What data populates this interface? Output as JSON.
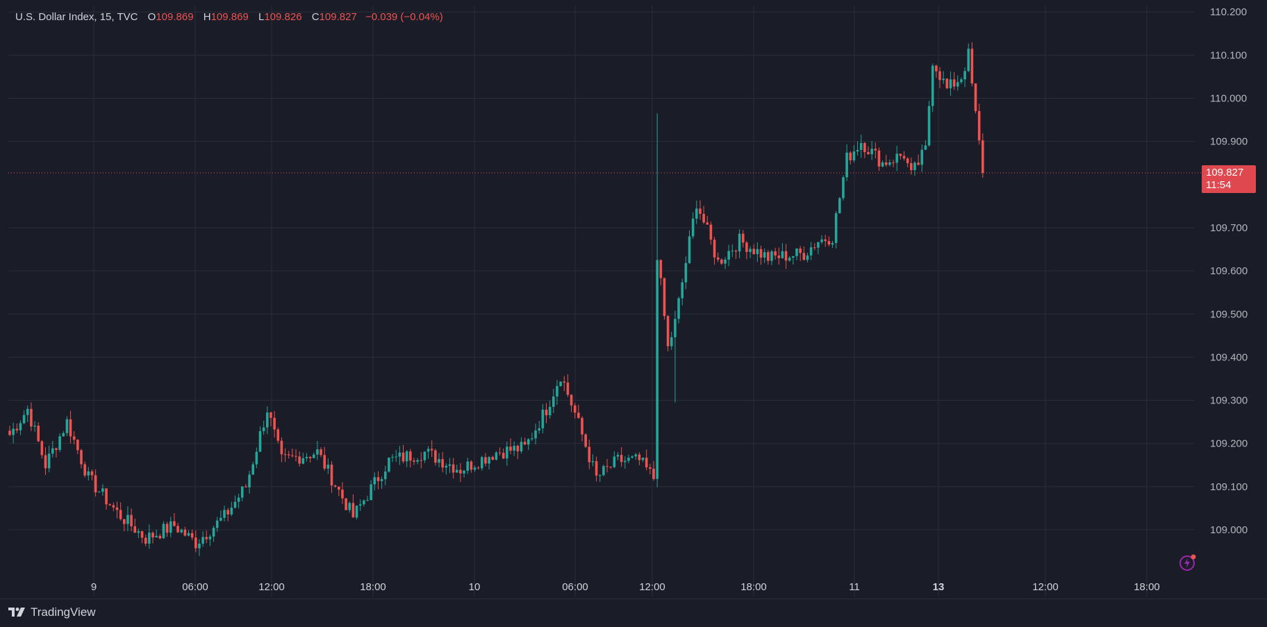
{
  "legend": {
    "symbol": "U.S. Dollar Index, 15, TVC",
    "open_label": "O",
    "open": "109.869",
    "high_label": "H",
    "high": "109.869",
    "low_label": "L",
    "low": "109.826",
    "close_label": "C",
    "close": "109.827",
    "change": "−0.039 (−0.04%)"
  },
  "last_price": {
    "price": "109.827",
    "countdown": "11:54"
  },
  "brand": "TradingView",
  "colors": {
    "up": "#26a69a",
    "down": "#ef5350",
    "background": "#1a1c27",
    "grid": "#2a2e39",
    "price_line": "#ef5350"
  },
  "icons": {
    "brand_logo": "tradingview-logo-icon",
    "flash": "flash-icon"
  },
  "chart_data": {
    "type": "candlestick",
    "title": "U.S. Dollar Index, 15, TVC",
    "y_axis": {
      "position": "right",
      "ticks": [
        "110.200",
        "110.100",
        "110.000",
        "109.900",
        "109.700",
        "109.600",
        "109.500",
        "109.400",
        "109.300",
        "109.200",
        "109.100",
        "109.000"
      ]
    },
    "x_axis": {
      "ticks": [
        {
          "label": "9",
          "bold": false
        },
        {
          "label": "06:00",
          "bold": false
        },
        {
          "label": "12:00",
          "bold": false
        },
        {
          "label": "18:00",
          "bold": false
        },
        {
          "label": "10",
          "bold": false
        },
        {
          "label": "06:00",
          "bold": false
        },
        {
          "label": "12:00",
          "bold": false
        },
        {
          "label": "18:00",
          "bold": false
        },
        {
          "label": "11",
          "bold": false
        },
        {
          "label": "13",
          "bold": true
        },
        {
          "label": "12:00",
          "bold": false
        },
        {
          "label": "18:00",
          "bold": false
        }
      ]
    },
    "grid": true,
    "last_price_line": 109.827,
    "ohlc_keypoints": [
      [
        0,
        109.22
      ],
      [
        5,
        109.28
      ],
      [
        10,
        109.15
      ],
      [
        16,
        109.25
      ],
      [
        22,
        109.12
      ],
      [
        30,
        109.04
      ],
      [
        38,
        108.98
      ],
      [
        46,
        109.01
      ],
      [
        52,
        108.97
      ],
      [
        60,
        109.03
      ],
      [
        66,
        109.1
      ],
      [
        72,
        109.28
      ],
      [
        76,
        109.16
      ],
      [
        86,
        109.18
      ],
      [
        96,
        109.03
      ],
      [
        106,
        109.16
      ],
      [
        116,
        109.18
      ],
      [
        126,
        109.14
      ],
      [
        136,
        109.18
      ],
      [
        144,
        109.19
      ],
      [
        150,
        109.28
      ],
      [
        154,
        109.36
      ],
      [
        158,
        109.27
      ],
      [
        164,
        109.12
      ],
      [
        170,
        109.16
      ],
      [
        176,
        109.16
      ],
      [
        180,
        109.12
      ],
      [
        181,
        109.64
      ],
      [
        184,
        109.42
      ],
      [
        186,
        109.48
      ],
      [
        192,
        109.76
      ],
      [
        198,
        109.62
      ],
      [
        204,
        109.67
      ],
      [
        212,
        109.63
      ],
      [
        222,
        109.64
      ],
      [
        226,
        109.67
      ],
      [
        230,
        109.68
      ],
      [
        234,
        109.86
      ],
      [
        238,
        109.9
      ],
      [
        244,
        109.85
      ],
      [
        250,
        109.87
      ],
      [
        252,
        109.82
      ],
      [
        256,
        109.88
      ],
      [
        258,
        110.09
      ],
      [
        262,
        110.02
      ],
      [
        266,
        110.05
      ],
      [
        268,
        110.1
      ],
      [
        270,
        109.96
      ],
      [
        272,
        109.83
      ]
    ]
  }
}
